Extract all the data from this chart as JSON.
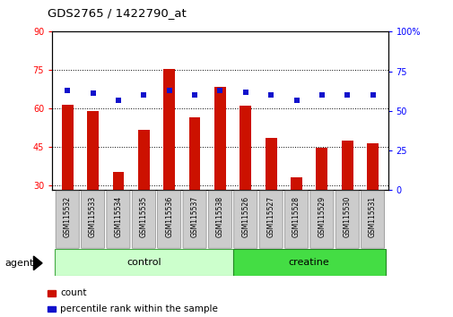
{
  "title": "GDS2765 / 1422790_at",
  "samples": [
    "GSM115532",
    "GSM115533",
    "GSM115534",
    "GSM115535",
    "GSM115536",
    "GSM115537",
    "GSM115538",
    "GSM115526",
    "GSM115527",
    "GSM115528",
    "GSM115529",
    "GSM115530",
    "GSM115531"
  ],
  "counts": [
    61.5,
    59.0,
    35.0,
    51.5,
    75.5,
    56.5,
    68.5,
    61.0,
    48.5,
    33.0,
    44.5,
    47.5,
    46.5
  ],
  "percentiles": [
    63,
    61,
    57,
    60,
    63,
    60,
    63,
    62,
    60,
    57,
    60,
    60,
    60
  ],
  "bar_color": "#cc1100",
  "dot_color": "#1111cc",
  "ylim_left": [
    28,
    90
  ],
  "ylim_right": [
    0,
    100
  ],
  "yticks_left": [
    30,
    45,
    60,
    75,
    90
  ],
  "yticks_right": [
    0,
    25,
    50,
    75,
    100
  ],
  "ytick_right_labels": [
    "0",
    "25",
    "50",
    "75",
    "100%"
  ],
  "groups": [
    {
      "label": "control",
      "indices": [
        0,
        1,
        2,
        3,
        4,
        5,
        6
      ],
      "color": "#ccffcc",
      "edge_color": "#44aa44"
    },
    {
      "label": "creatine",
      "indices": [
        7,
        8,
        9,
        10,
        11,
        12
      ],
      "color": "#44dd44",
      "edge_color": "#228822"
    }
  ],
  "group_label": "agent",
  "legend_count_label": "count",
  "legend_pct_label": "percentile rank within the sample",
  "bar_width": 0.45,
  "grid_color": "black",
  "background_color": "#ffffff",
  "tick_label_bg": "#cccccc",
  "base_value": 28
}
